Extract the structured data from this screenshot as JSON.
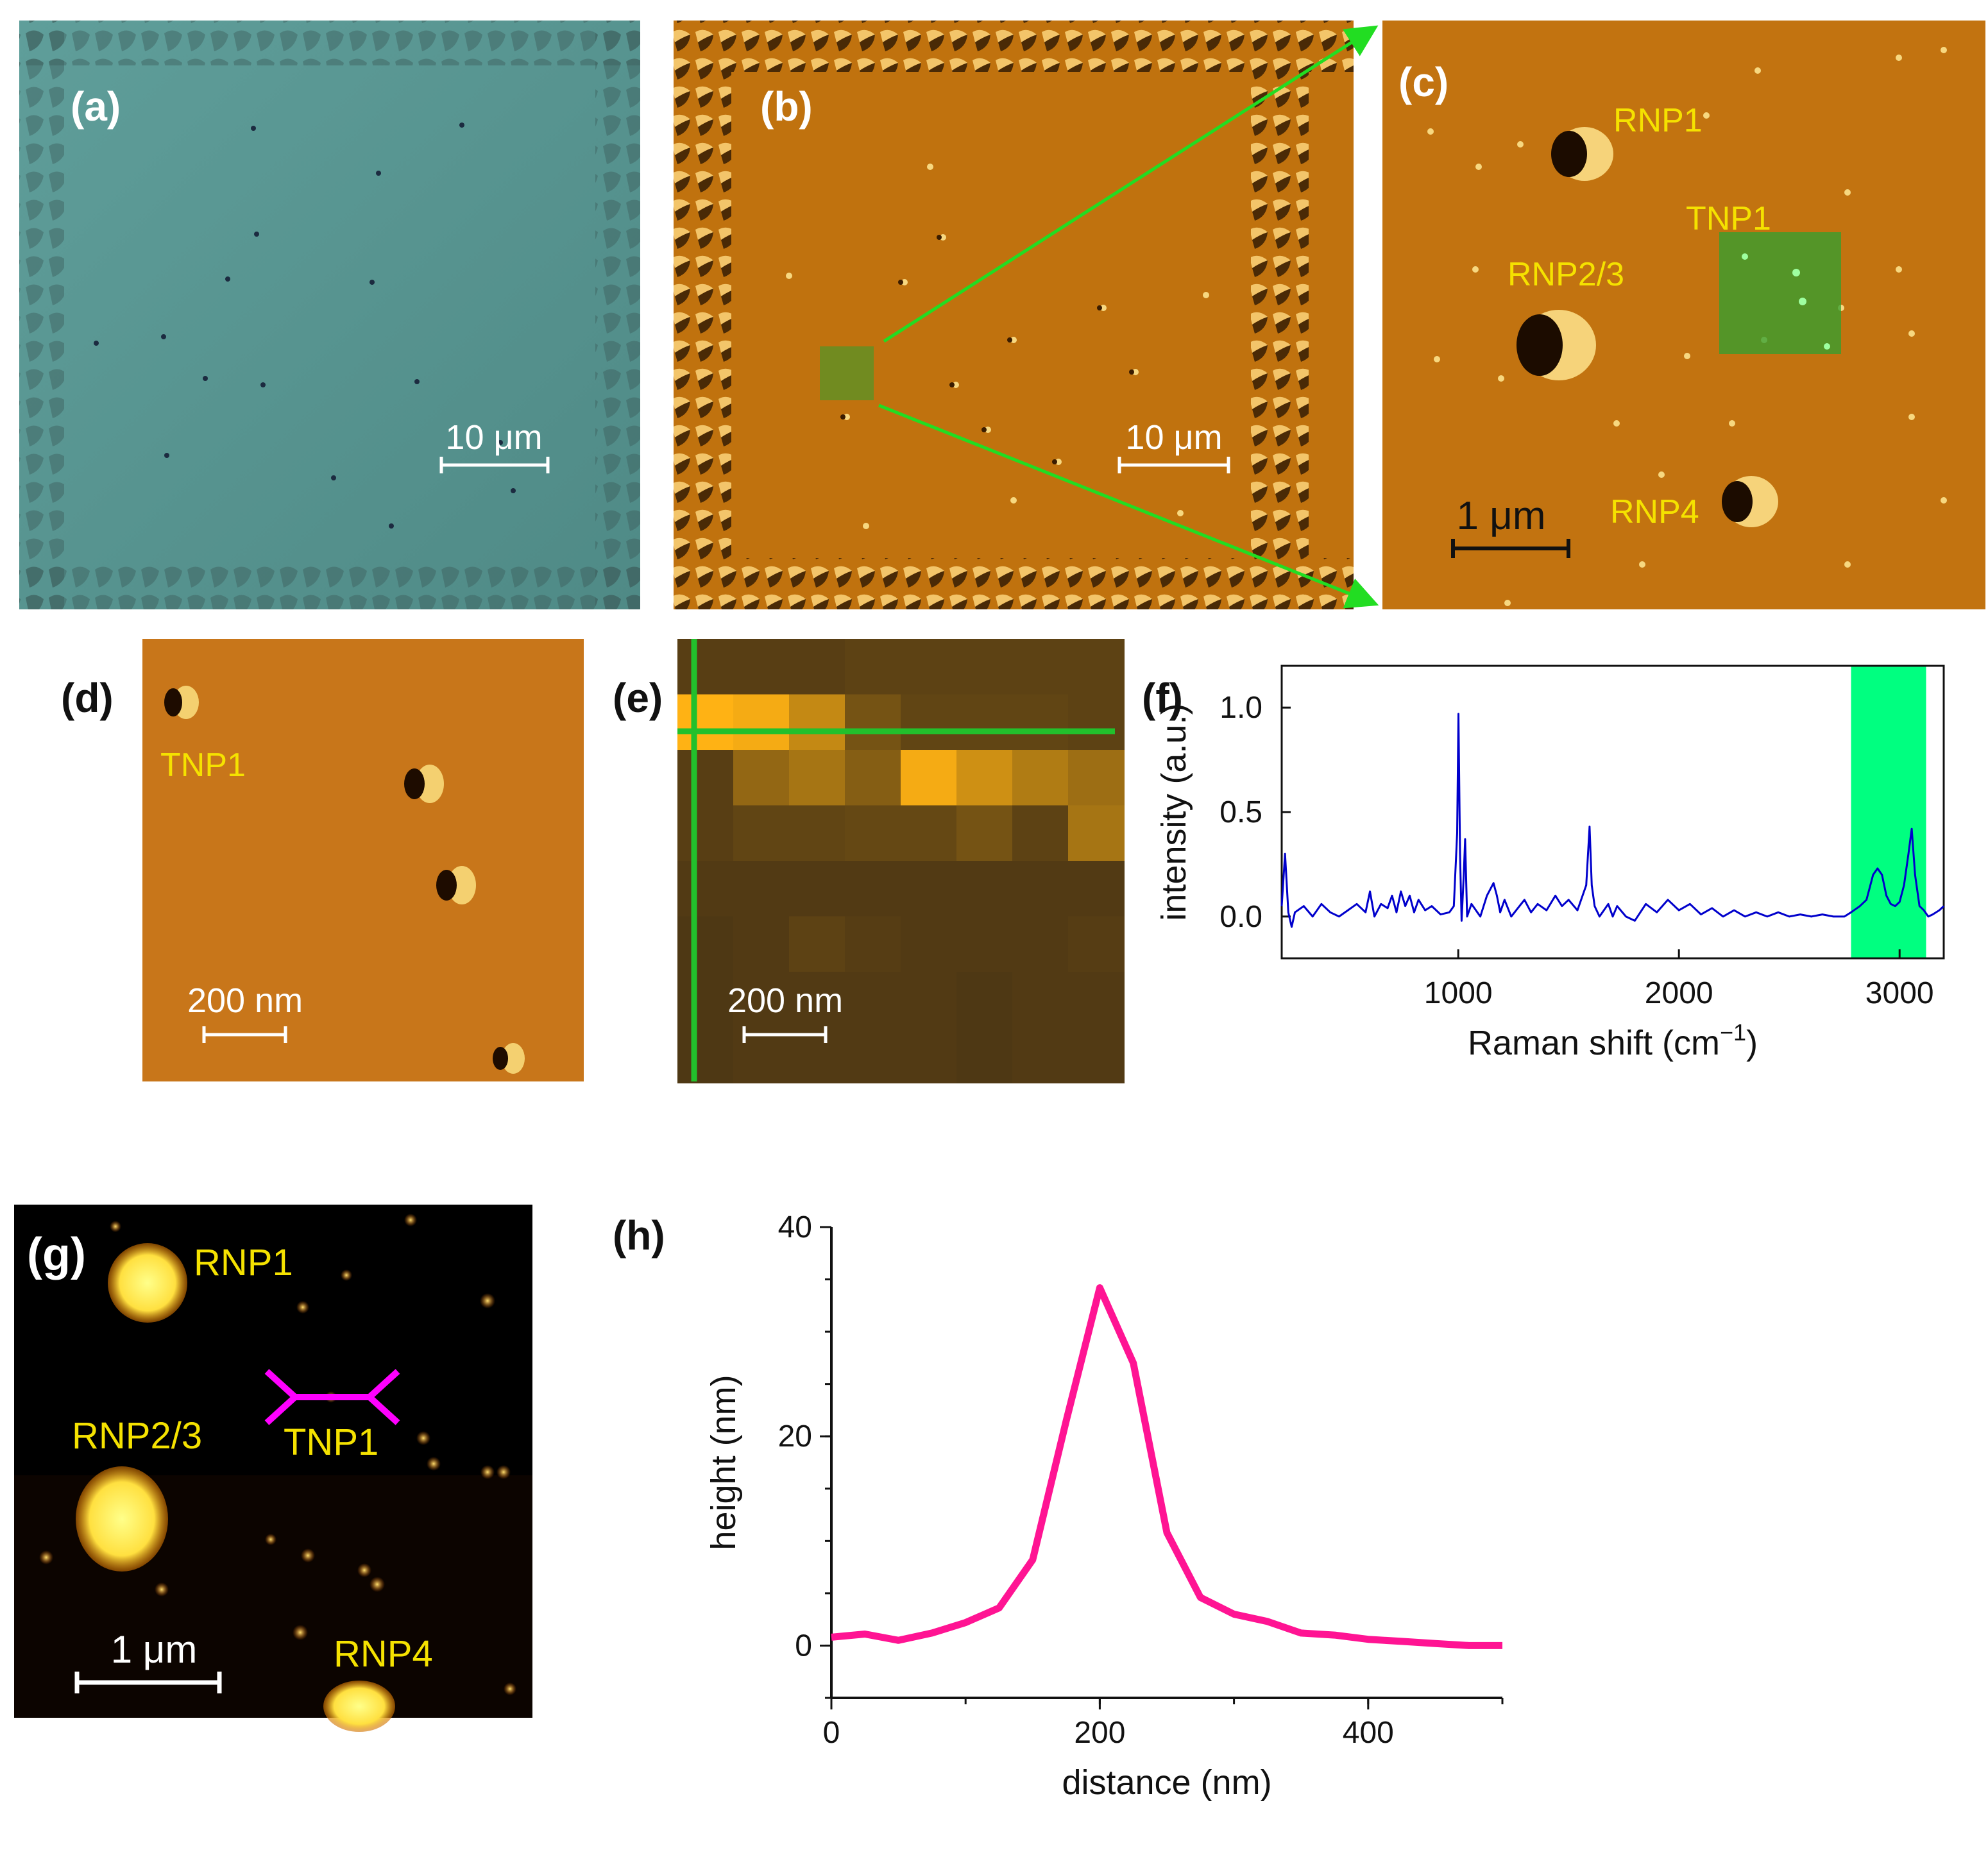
{
  "panels": {
    "a": {
      "label": "(a)",
      "scale_bar": "10 μm"
    },
    "b": {
      "label": "(b)",
      "scale_bar": "10 μm"
    },
    "c": {
      "label": "(c)",
      "scale_bar": "1 μm",
      "labels": [
        "RNP1",
        "TNP1",
        "RNP2/3",
        "RNP4"
      ]
    },
    "d": {
      "label": "(d)",
      "scale_bar": "200 nm",
      "particle_label": "TNP1"
    },
    "e": {
      "label": "(e)",
      "scale_bar": "200 nm"
    },
    "f": {
      "label": "(f)"
    },
    "g": {
      "label": "(g)",
      "scale_bar": "1 μm",
      "labels": [
        "RNP1",
        "RNP2/3",
        "TNP1",
        "RNP4"
      ]
    },
    "h": {
      "label": "(h)"
    }
  },
  "colors": {
    "optical_bg": "#5a9692",
    "afm_bg": "#c0720e",
    "highlight_green": "#00ff80",
    "arrow_green": "#22dd22",
    "spectrum_line": "#0000cc",
    "profile_line": "#ff1493",
    "label_yellow": "#f5e200",
    "line_magenta": "#ff00ff"
  },
  "chart_data": [
    {
      "panel": "f",
      "type": "line",
      "xlabel": "Raman shift (cm",
      "xlabel_superscript": "−1",
      "xlabel_suffix": ")",
      "ylabel": "intensity (a.u.)",
      "xlim": [
        200,
        3200
      ],
      "ylim": [
        -0.2,
        1.2
      ],
      "xticks": [
        1000,
        2000,
        3000
      ],
      "yticks": [
        0.0,
        0.5,
        1.0
      ],
      "ytick_labels": [
        "0.0",
        "0.5",
        "1.0"
      ],
      "highlight_range": [
        2780,
        3120
      ],
      "series": [
        {
          "x": [
            200,
            215,
            230,
            245,
            260,
            300,
            340,
            380,
            420,
            460,
            500,
            540,
            580,
            600,
            620,
            650,
            680,
            700,
            720,
            740,
            760,
            780,
            800,
            820,
            850,
            880,
            920,
            960,
            980,
            995,
            1001,
            1008,
            1015,
            1025,
            1031,
            1040,
            1060,
            1100,
            1130,
            1160,
            1175,
            1190,
            1210,
            1240,
            1270,
            1300,
            1330,
            1360,
            1400,
            1440,
            1470,
            1500,
            1540,
            1580,
            1595,
            1605,
            1618,
            1640,
            1680,
            1700,
            1720,
            1760,
            1800,
            1850,
            1900,
            1950,
            2000,
            2050,
            2100,
            2150,
            2200,
            2250,
            2300,
            2350,
            2400,
            2450,
            2500,
            2550,
            2600,
            2650,
            2700,
            2750,
            2780,
            2820,
            2850,
            2880,
            2900,
            2920,
            2940,
            2960,
            2980,
            3000,
            3020,
            3040,
            3055,
            3070,
            3090,
            3110,
            3130,
            3150,
            3180,
            3200
          ],
          "y": [
            0.05,
            0.3,
            0.02,
            -0.05,
            0.02,
            0.05,
            0.0,
            0.06,
            0.02,
            0.0,
            0.03,
            0.06,
            0.02,
            0.12,
            0.0,
            0.06,
            0.04,
            0.1,
            0.02,
            0.12,
            0.05,
            0.1,
            0.02,
            0.08,
            0.03,
            0.05,
            0.01,
            0.02,
            0.05,
            0.4,
            0.97,
            0.3,
            -0.02,
            0.2,
            0.37,
            0.0,
            0.06,
            0.0,
            0.1,
            0.16,
            0.1,
            0.02,
            0.08,
            0.0,
            0.04,
            0.08,
            0.02,
            0.06,
            0.03,
            0.1,
            0.05,
            0.08,
            0.03,
            0.15,
            0.43,
            0.15,
            0.05,
            0.0,
            0.06,
            0.0,
            0.05,
            0.0,
            -0.02,
            0.06,
            0.02,
            0.08,
            0.03,
            0.06,
            0.01,
            0.04,
            0.0,
            0.03,
            0.0,
            0.02,
            0.0,
            0.02,
            0.0,
            0.01,
            0.0,
            0.01,
            0.0,
            0.0,
            0.02,
            0.05,
            0.08,
            0.2,
            0.23,
            0.2,
            0.1,
            0.06,
            0.05,
            0.07,
            0.15,
            0.3,
            0.42,
            0.2,
            0.05,
            0.03,
            0.0,
            0.01,
            0.03,
            0.05
          ]
        }
      ]
    },
    {
      "panel": "h",
      "type": "line",
      "xlabel": "distance (nm)",
      "ylabel": "height (nm)",
      "xlim": [
        0,
        500
      ],
      "ylim": [
        -5,
        40
      ],
      "xticks": [
        0,
        200,
        400
      ],
      "yticks": [
        0,
        20,
        40
      ],
      "series": [
        {
          "x": [
            0,
            25,
            50,
            75,
            100,
            125,
            150,
            175,
            200,
            225,
            250,
            275,
            300,
            325,
            350,
            375,
            400,
            425,
            450,
            475,
            500
          ],
          "y": [
            0.8,
            1.1,
            0.5,
            1.2,
            2.2,
            3.6,
            8.2,
            21.5,
            34.2,
            27.0,
            10.8,
            4.6,
            3.0,
            2.3,
            1.2,
            1.0,
            0.6,
            0.4,
            0.2,
            0.0,
            0.0
          ]
        }
      ]
    }
  ]
}
